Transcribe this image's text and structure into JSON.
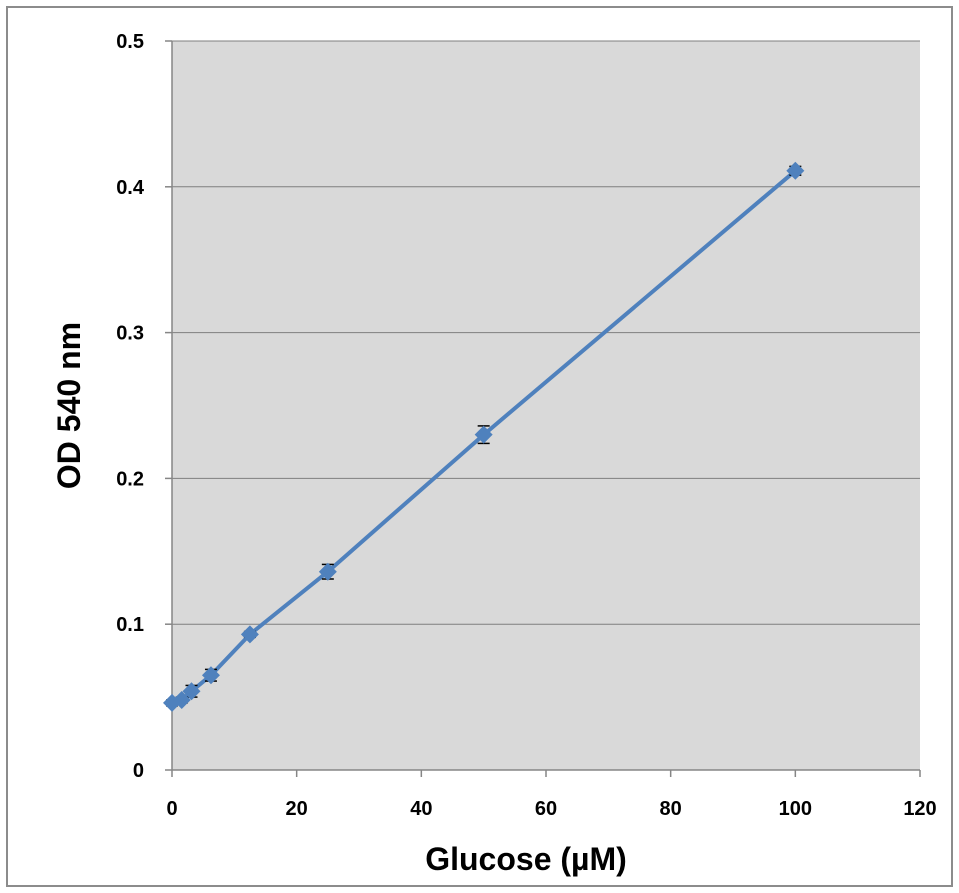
{
  "chart_data": {
    "type": "line",
    "title": "",
    "xlabel": "Glucose (µM)",
    "ylabel": "OD 540 nm",
    "xlim": [
      0,
      120
    ],
    "ylim": [
      0,
      0.5
    ],
    "x_ticks": [
      0,
      20,
      40,
      60,
      80,
      100,
      120
    ],
    "y_ticks": [
      0,
      0.1,
      0.2,
      0.3,
      0.4,
      0.5
    ],
    "x_tick_labels": [
      "0",
      "20",
      "40",
      "60",
      "80",
      "100",
      "120"
    ],
    "y_tick_labels": [
      "0",
      "0.1",
      "0.2",
      "0.3",
      "0.4",
      "0.5"
    ],
    "grid": "horizontal",
    "legend": "none",
    "series": [
      {
        "marker": "diamond",
        "color": "#4f81bd",
        "points": [
          {
            "x": 0,
            "y": 0.046,
            "err": 0.002
          },
          {
            "x": 1.56,
            "y": 0.048,
            "err": 0.002
          },
          {
            "x": 3.13,
            "y": 0.054,
            "err": 0.004
          },
          {
            "x": 6.25,
            "y": 0.065,
            "err": 0.004
          },
          {
            "x": 12.5,
            "y": 0.093,
            "err": 0.002
          },
          {
            "x": 25,
            "y": 0.136,
            "err": 0.005
          },
          {
            "x": 50,
            "y": 0.23,
            "err": 0.006
          },
          {
            "x": 100,
            "y": 0.411,
            "err": 0.003
          }
        ]
      }
    ],
    "colors": {
      "plot_background": "#d9d9d9",
      "gridline": "#7f7f7f",
      "axis": "#868686",
      "error_bar": "#000000"
    }
  }
}
